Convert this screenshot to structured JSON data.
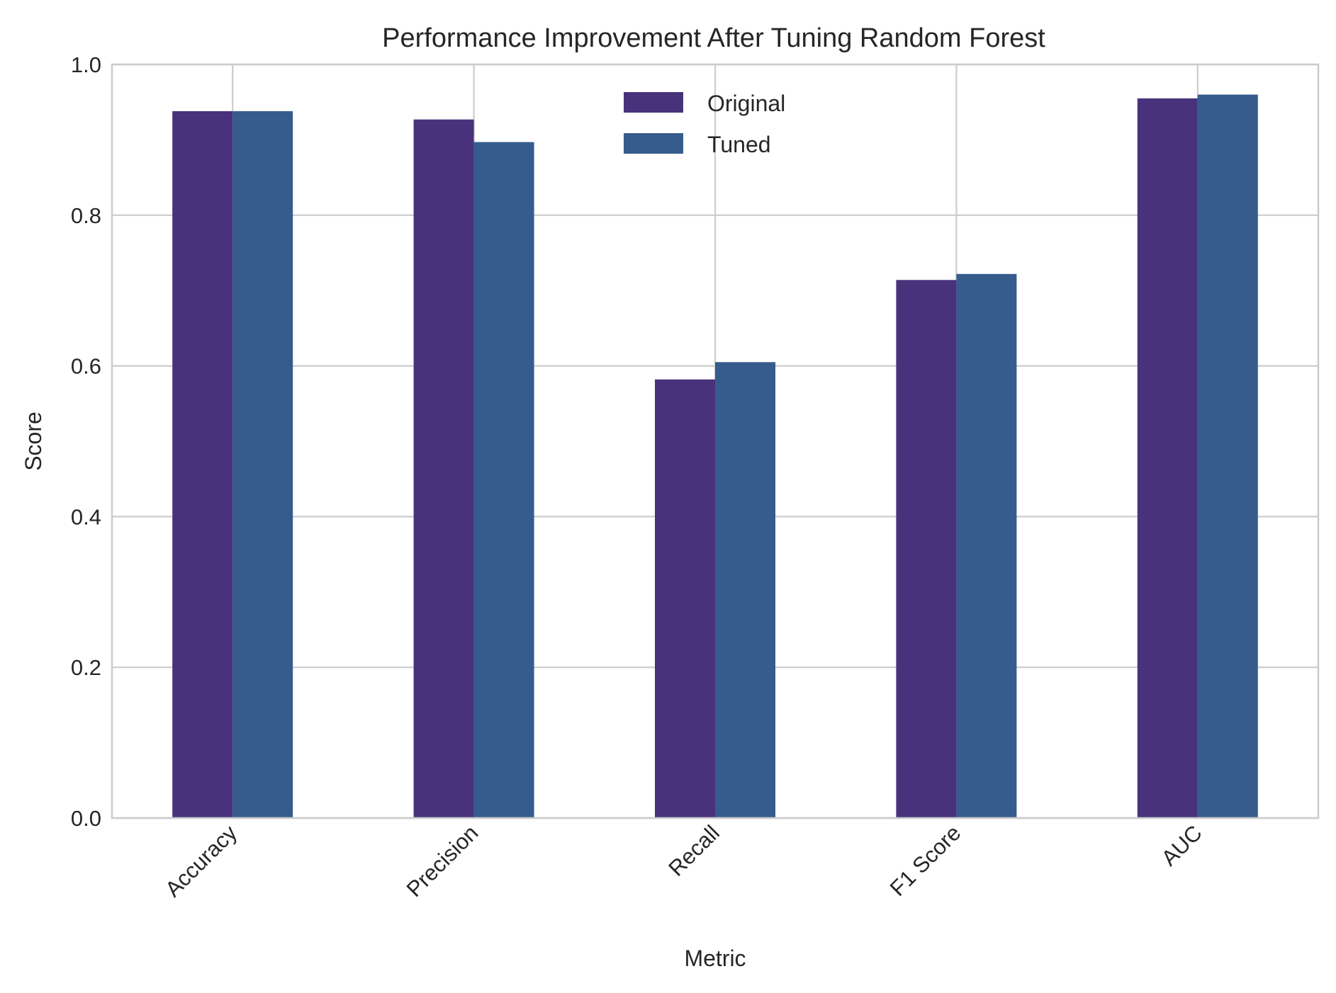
{
  "chart_data": {
    "type": "bar",
    "title": "Performance Improvement After Tuning Random Forest",
    "xlabel": "Metric",
    "ylabel": "Score",
    "ylim": [
      0,
      1.0
    ],
    "yticks": [
      "0.0",
      "0.2",
      "0.4",
      "0.6",
      "0.8",
      "1.0"
    ],
    "categories": [
      "Accuracy",
      "Precision",
      "Recall",
      "F1 Score",
      "AUC"
    ],
    "series": [
      {
        "name": "Original",
        "color": "#48327b",
        "values": [
          0.938,
          0.927,
          0.582,
          0.714,
          0.955
        ]
      },
      {
        "name": "Tuned",
        "color": "#365c8d",
        "values": [
          0.938,
          0.897,
          0.605,
          0.722,
          0.96
        ]
      }
    ],
    "grid": true,
    "legend_position": "top-center"
  }
}
